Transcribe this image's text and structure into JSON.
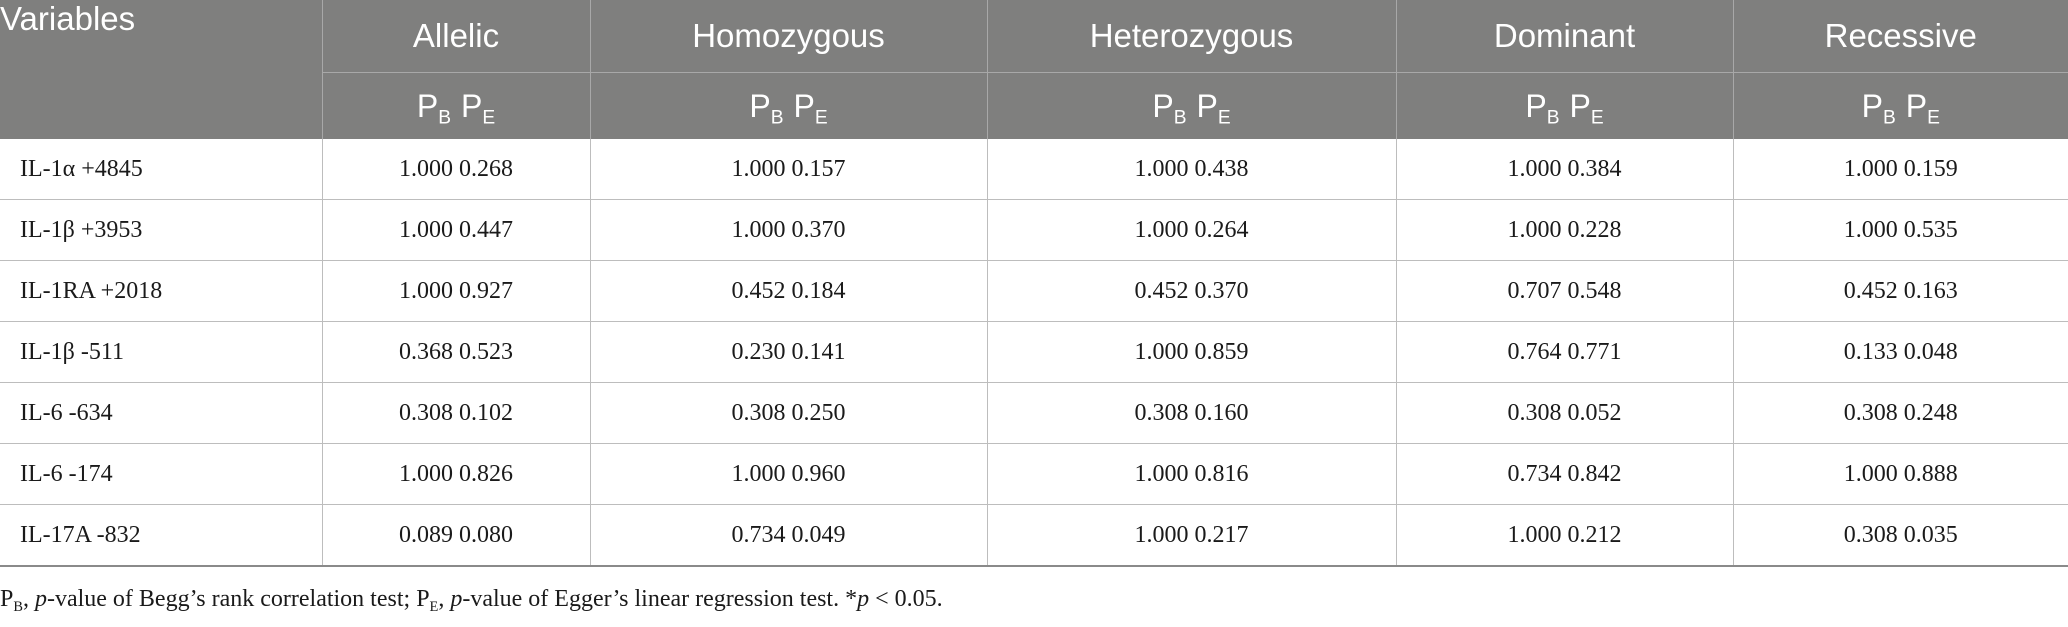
{
  "table": {
    "columns": [
      "Variables",
      "Allelic",
      "Homozygous",
      "Heterozygous",
      "Dominant",
      "Recessive"
    ],
    "subheader": {
      "p1": "P",
      "p1_sub": "B",
      "p2": "P",
      "p2_sub": "E"
    },
    "rows": [
      {
        "variable": "IL-1α +4845",
        "values": [
          "1.000 0.268",
          "1.000 0.157",
          "1.000 0.438",
          "1.000 0.384",
          "1.000 0.159"
        ]
      },
      {
        "variable": "IL-1β +3953",
        "values": [
          "1.000 0.447",
          "1.000 0.370",
          "1.000 0.264",
          "1.000 0.228",
          "1.000 0.535"
        ]
      },
      {
        "variable": "IL-1RA +2018",
        "values": [
          "1.000 0.927",
          "0.452 0.184",
          "0.452 0.370",
          "0.707 0.548",
          "0.452 0.163"
        ]
      },
      {
        "variable": "IL-1β -511",
        "values": [
          "0.368 0.523",
          "0.230 0.141",
          "1.000 0.859",
          "0.764 0.771",
          "0.133 0.048"
        ]
      },
      {
        "variable": "IL-6 -634",
        "values": [
          "0.308 0.102",
          "0.308 0.250",
          "0.308 0.160",
          "0.308 0.052",
          "0.308 0.248"
        ]
      },
      {
        "variable": "IL-6 -174",
        "values": [
          "1.000 0.826",
          "1.000 0.960",
          "1.000 0.816",
          "0.734 0.842",
          "1.000 0.888"
        ]
      },
      {
        "variable": "IL-17A -832",
        "values": [
          "0.089 0.080",
          "0.734 0.049",
          "1.000 0.217",
          "1.000 0.212",
          "0.308 0.035"
        ]
      }
    ]
  },
  "footnote": {
    "pb": "P",
    "pb_sub": "B",
    "pb_sep": ", ",
    "pb_pvalue": "p",
    "pb_desc": "-value of Begg’s rank correlation test; ",
    "pe": "P",
    "pe_sub": "E",
    "pe_sep": ", ",
    "pe_pvalue": "p",
    "pe_desc": "-value of Egger’s linear regression test. *",
    "sig_p": "p",
    "sig_rest": " < 0.05."
  }
}
